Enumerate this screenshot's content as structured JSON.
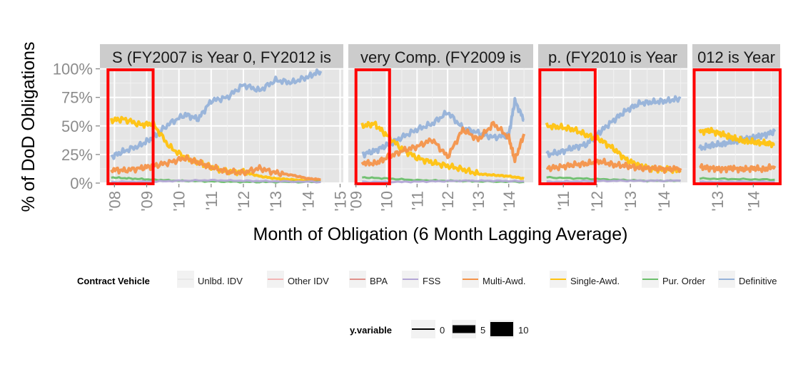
{
  "chart_data": {
    "type": "line",
    "ylabel": "% of DoD Obligations",
    "xlabel": "Month of Obligation (6 Month Lagging Average)",
    "y_ticks": [
      "0%",
      "25%",
      "50%",
      "75%",
      "100%"
    ],
    "ylim": [
      0,
      1
    ],
    "grid": true,
    "legend_position": "bottom",
    "legend": {
      "title": "Contract Vehicle",
      "entries": [
        {
          "name": "Unlbd. IDV",
          "color": "#e8e8e8"
        },
        {
          "name": "Other IDV",
          "color": "#f2b5b5"
        },
        {
          "name": "BPA",
          "color": "#e0908a"
        },
        {
          "name": "FSS",
          "color": "#b3a6d6"
        },
        {
          "name": "Multi-Awd.",
          "color": "#f4934a"
        },
        {
          "name": "Single-Awd.",
          "color": "#ffc20e"
        },
        {
          "name": "Pur. Order",
          "color": "#6cbf6c"
        },
        {
          "name": "Definitive",
          "color": "#96b2d9"
        }
      ]
    },
    "size_legend": {
      "title": "y.variable",
      "entries": [
        {
          "label": "0",
          "size": 0
        },
        {
          "label": "5",
          "size": 5
        },
        {
          "label": "10",
          "size": 10
        }
      ]
    },
    "panels": [
      {
        "strip": "S (FY2007 is Year 0, FY2012 is",
        "x_ticks": [
          {
            "label": "'08",
            "x": 2008
          },
          {
            "label": "'09",
            "x": 2009
          },
          {
            "label": "'10",
            "x": 2010
          },
          {
            "label": "'11",
            "x": 2011
          },
          {
            "label": "'12",
            "x": 2012
          },
          {
            "label": "'13",
            "x": 2013
          },
          {
            "label": "'14",
            "x": 2014
          },
          {
            "label": "'15",
            "x": 2015
          }
        ],
        "xlim": [
          2007.55,
          2015.1
        ],
        "highlight": [
          2007.8,
          2009.2
        ],
        "series": [
          {
            "name": "Definitive",
            "x": [
              2007.9,
              2008.3,
              2008.8,
              2009.2,
              2009.7,
              2010.2,
              2010.6,
              2011.0,
              2011.5,
              2012.0,
              2012.5,
              2013.0,
              2013.5,
              2014.0,
              2014.4
            ],
            "values": [
              0.23,
              0.28,
              0.33,
              0.4,
              0.52,
              0.6,
              0.56,
              0.72,
              0.75,
              0.86,
              0.81,
              0.9,
              0.88,
              0.93,
              0.98
            ]
          },
          {
            "name": "Single-Awd.",
            "x": [
              2007.9,
              2008.3,
              2008.8,
              2009.2,
              2009.7,
              2010.2,
              2010.6,
              2011.0,
              2011.5,
              2012.0,
              2012.5,
              2013.0,
              2013.5,
              2014.0,
              2014.4
            ],
            "values": [
              0.55,
              0.56,
              0.51,
              0.52,
              0.32,
              0.22,
              0.18,
              0.14,
              0.1,
              0.1,
              0.06,
              0.04,
              0.03,
              0.02,
              0.02
            ]
          },
          {
            "name": "Multi-Awd.",
            "x": [
              2007.9,
              2008.3,
              2008.8,
              2009.2,
              2009.7,
              2010.2,
              2010.6,
              2011.0,
              2011.5,
              2012.0,
              2012.5,
              2013.0,
              2013.5,
              2014.0,
              2014.4
            ],
            "values": [
              0.12,
              0.11,
              0.13,
              0.15,
              0.18,
              0.22,
              0.18,
              0.14,
              0.1,
              0.09,
              0.13,
              0.09,
              0.07,
              0.04,
              0.03
            ]
          },
          {
            "name": "Pur. Order",
            "x": [
              2007.9,
              2008.5,
              2009.2,
              2010.0,
              2011.0,
              2012.0,
              2013.0,
              2014.4
            ],
            "values": [
              0.05,
              0.04,
              0.03,
              0.02,
              0.015,
              0.01,
              0.01,
              0.01
            ]
          },
          {
            "name": "FSS",
            "x": [
              2007.9,
              2009.0,
              2010.0,
              2011.0,
              2012.0,
              2013.0,
              2014.4
            ],
            "values": [
              0.01,
              0.012,
              0.02,
              0.025,
              0.02,
              0.015,
              0.01
            ]
          }
        ]
      },
      {
        "strip": "very Comp. (FY2009 is",
        "x_ticks": [
          {
            "label": "'09",
            "x": 2009
          },
          {
            "label": "'10",
            "x": 2010
          },
          {
            "label": "'11",
            "x": 2011
          },
          {
            "label": "'12",
            "x": 2012
          },
          {
            "label": "'13",
            "x": 2013
          },
          {
            "label": "'14",
            "x": 2014
          }
        ],
        "xlim": [
          2008.75,
          2014.8
        ],
        "highlight": [
          2009.0,
          2010.1
        ],
        "series": [
          {
            "name": "Definitive",
            "x": [
              2009.2,
              2009.6,
              2010.0,
              2010.5,
              2011.0,
              2011.5,
              2012.0,
              2012.5,
              2013.0,
              2013.5,
              2014.0,
              2014.2,
              2014.5
            ],
            "values": [
              0.25,
              0.28,
              0.33,
              0.4,
              0.47,
              0.52,
              0.62,
              0.48,
              0.44,
              0.4,
              0.42,
              0.72,
              0.55
            ]
          },
          {
            "name": "Single-Awd.",
            "x": [
              2009.2,
              2009.6,
              2010.0,
              2010.5,
              2011.0,
              2011.5,
              2012.0,
              2012.5,
              2013.0,
              2013.5,
              2014.0,
              2014.5
            ],
            "values": [
              0.5,
              0.52,
              0.42,
              0.3,
              0.22,
              0.18,
              0.15,
              0.12,
              0.08,
              0.07,
              0.06,
              0.04
            ]
          },
          {
            "name": "Multi-Awd.",
            "x": [
              2009.2,
              2009.6,
              2010.0,
              2010.5,
              2011.0,
              2011.5,
              2012.0,
              2012.5,
              2013.0,
              2013.5,
              2014.0,
              2014.2,
              2014.5
            ],
            "values": [
              0.18,
              0.17,
              0.22,
              0.28,
              0.32,
              0.38,
              0.23,
              0.47,
              0.38,
              0.52,
              0.4,
              0.2,
              0.43
            ]
          },
          {
            "name": "Pur. Order",
            "x": [
              2009.2,
              2010.0,
              2011.0,
              2012.0,
              2013.0,
              2014.5
            ],
            "values": [
              0.05,
              0.04,
              0.025,
              0.02,
              0.015,
              0.01
            ]
          },
          {
            "name": "FSS",
            "x": [
              2009.2,
              2010.5,
              2011.5,
              2012.5,
              2013.5,
              2014.5
            ],
            "values": [
              0.01,
              0.01,
              0.015,
              0.02,
              0.02,
              0.015
            ]
          }
        ]
      },
      {
        "strip": "p. (FY2010 is Year",
        "x_ticks": [
          {
            "label": "'11",
            "x": 2011
          },
          {
            "label": "'12",
            "x": 2012
          },
          {
            "label": "'13",
            "x": 2013
          },
          {
            "label": "'14",
            "x": 2014
          }
        ],
        "xlim": [
          2010.25,
          2014.7
        ],
        "highlight": [
          2010.3,
          2011.95
        ],
        "series": [
          {
            "name": "Definitive",
            "x": [
              2010.5,
              2010.9,
              2011.3,
              2011.7,
              2012.1,
              2012.5,
              2012.9,
              2013.3,
              2013.7,
              2014.1,
              2014.5
            ],
            "values": [
              0.25,
              0.27,
              0.31,
              0.34,
              0.45,
              0.55,
              0.64,
              0.7,
              0.71,
              0.72,
              0.74
            ]
          },
          {
            "name": "Single-Awd.",
            "x": [
              2010.5,
              2010.9,
              2011.3,
              2011.7,
              2012.1,
              2012.5,
              2012.9,
              2013.3,
              2013.7,
              2014.1,
              2014.5
            ],
            "values": [
              0.5,
              0.49,
              0.47,
              0.42,
              0.38,
              0.3,
              0.2,
              0.15,
              0.12,
              0.12,
              0.11
            ]
          },
          {
            "name": "Multi-Awd.",
            "x": [
              2010.5,
              2010.9,
              2011.3,
              2011.7,
              2012.1,
              2012.5,
              2012.9,
              2013.3,
              2013.7,
              2014.1,
              2014.5
            ],
            "values": [
              0.13,
              0.14,
              0.16,
              0.17,
              0.19,
              0.16,
              0.15,
              0.13,
              0.13,
              0.12,
              0.13
            ]
          },
          {
            "name": "Pur. Order",
            "x": [
              2010.5,
              2011.5,
              2012.5,
              2013.5,
              2014.5
            ],
            "values": [
              0.05,
              0.04,
              0.03,
              0.02,
              0.02
            ]
          },
          {
            "name": "FSS",
            "x": [
              2010.5,
              2011.5,
              2012.5,
              2013.5,
              2014.5
            ],
            "values": [
              0.01,
              0.015,
              0.02,
              0.02,
              0.02
            ]
          }
        ]
      },
      {
        "strip": "012 is Year",
        "x_ticks": [
          {
            "label": "'13",
            "x": 2013
          },
          {
            "label": "'14",
            "x": 2014
          }
        ],
        "xlim": [
          2012.3,
          2014.75
        ],
        "highlight": [
          2012.35,
          2014.75
        ],
        "series": [
          {
            "name": "Definitive",
            "x": [
              2012.5,
              2012.8,
              2013.1,
              2013.4,
              2013.7,
              2014.0,
              2014.3,
              2014.6
            ],
            "values": [
              0.3,
              0.33,
              0.34,
              0.36,
              0.38,
              0.4,
              0.42,
              0.45
            ]
          },
          {
            "name": "Single-Awd.",
            "x": [
              2012.5,
              2012.8,
              2013.1,
              2013.4,
              2013.7,
              2014.0,
              2014.3,
              2014.6
            ],
            "values": [
              0.45,
              0.46,
              0.43,
              0.4,
              0.37,
              0.36,
              0.35,
              0.34
            ]
          },
          {
            "name": "Multi-Awd.",
            "x": [
              2012.5,
              2012.8,
              2013.1,
              2013.4,
              2013.7,
              2014.0,
              2014.3,
              2014.6
            ],
            "values": [
              0.14,
              0.13,
              0.12,
              0.13,
              0.12,
              0.13,
              0.12,
              0.15
            ]
          },
          {
            "name": "Pur. Order",
            "x": [
              2012.5,
              2013.5,
              2014.6
            ],
            "values": [
              0.04,
              0.035,
              0.03
            ]
          },
          {
            "name": "FSS",
            "x": [
              2012.5,
              2013.5,
              2014.6
            ],
            "values": [
              0.01,
              0.012,
              0.01
            ]
          }
        ]
      }
    ]
  }
}
